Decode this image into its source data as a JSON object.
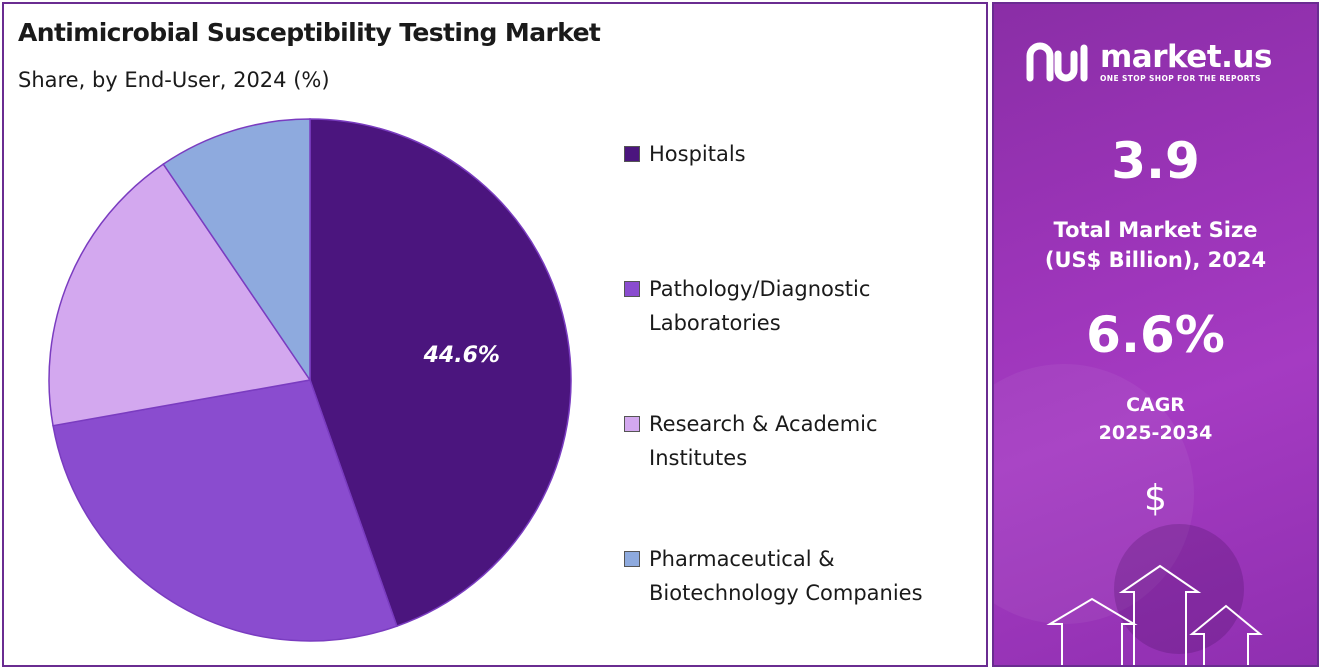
{
  "title": "Antimicrobial Susceptibility Testing Market",
  "subtitle": "Share, by End-User, 2024 (%)",
  "chart_data": {
    "type": "pie",
    "title": "Antimicrobial Susceptibility Testing Market",
    "subtitle": "Share, by End-User, 2024 (%)",
    "legend_position": "right",
    "categories": [
      "Hospitals",
      "Pathology/Diagnostic Laboratories",
      "Research & Academic Institutes",
      "Pharmaceutical & Biotechnology Companies"
    ],
    "legend_lines": [
      [
        "Hospitals"
      ],
      [
        "Pathology/Diagnostic",
        "Laboratories"
      ],
      [
        "Research & Academic",
        "Institutes"
      ],
      [
        "Pharmaceutical &",
        "Biotechnology Companies"
      ]
    ],
    "values": [
      44.6,
      27.6,
      18.3,
      9.5
    ],
    "colors": [
      "#4b157e",
      "#8a4ccf",
      "#d3a8ef",
      "#8eaade"
    ],
    "data_labels": [
      "44.6%",
      "",
      "",
      ""
    ]
  },
  "side_panel": {
    "brand_name": "market.us",
    "brand_tagline": "ONE STOP SHOP FOR THE REPORTS",
    "market_size_value": "3.9",
    "market_size_label_line1": "Total Market Size",
    "market_size_label_line2": "(US$ Billion), 2024",
    "cagr_value": "6.6%",
    "cagr_label_line1": "CAGR",
    "cagr_label_line2": "2025-2034",
    "currency_symbol": "$",
    "icons": [
      "market-us-logo-icon",
      "growth-arrows-icon"
    ],
    "gradient_colors": [
      "#8a2ea6",
      "#a53bc2"
    ]
  }
}
